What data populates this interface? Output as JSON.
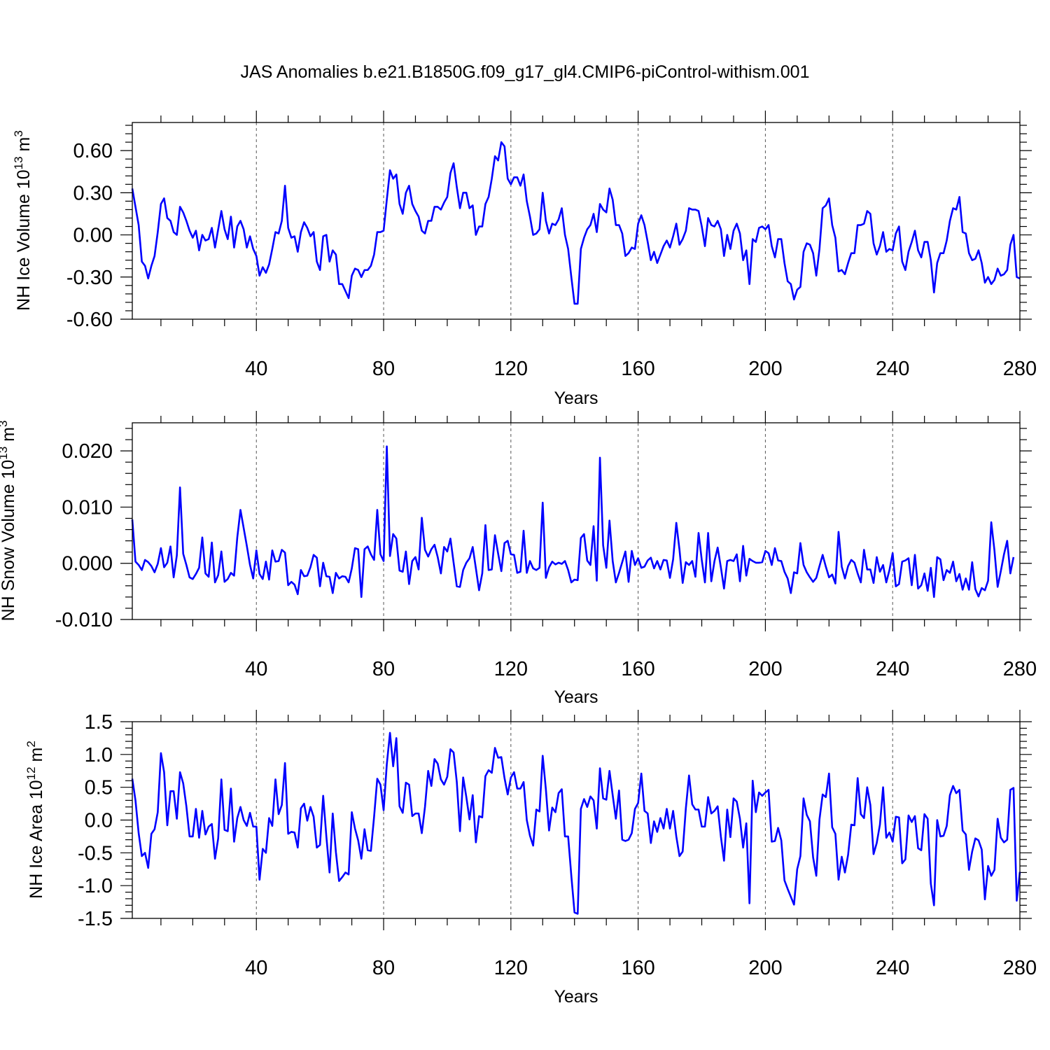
{
  "title": "JAS Anomalies b.e21.B1850G.f09_g17_gl4.CMIP6-piControl-withism.001",
  "line_color": "#0000ff",
  "chart_data": [
    {
      "type": "line",
      "name": "ice-volume",
      "ylabel": "NH Ice Volume 10",
      "ylabel_sup": "13",
      "ylabel_unit": " m",
      "ylabel_unit_sup": "3",
      "xlabel": "Years",
      "xlim": [
        1,
        280
      ],
      "ylim": [
        -0.6,
        0.8
      ],
      "xticks": [
        40,
        80,
        120,
        160,
        200,
        240,
        280
      ],
      "xtick_labels": [
        "40",
        "80",
        "120",
        "160",
        "200",
        "240",
        "280"
      ],
      "yticks": [
        -0.6,
        -0.3,
        0.0,
        0.3,
        0.6
      ],
      "ytick_labels": [
        "-0.60",
        "-0.30",
        "0.00",
        "0.30",
        "0.60"
      ],
      "grid_x": "dashed-vertical",
      "x_start": 1,
      "values": [
        0.33,
        0.2,
        0.07,
        -0.19,
        -0.22,
        -0.31,
        -0.22,
        -0.15,
        0.02,
        0.22,
        0.26,
        0.12,
        0.1,
        0.02,
        0.0,
        0.2,
        0.16,
        0.1,
        0.03,
        -0.02,
        0.03,
        -0.11,
        0.0,
        -0.04,
        -0.03,
        0.05,
        -0.09,
        0.04,
        0.17,
        0.04,
        -0.03,
        0.13,
        -0.09,
        0.06,
        0.1,
        0.04,
        -0.09,
        -0.01,
        -0.1,
        -0.15,
        -0.29,
        -0.23,
        -0.27,
        -0.21,
        -0.1,
        0.02,
        0.01,
        0.1,
        0.35,
        0.05,
        -0.02,
        -0.01,
        -0.12,
        0.02,
        0.09,
        0.05,
        -0.01,
        0.02,
        -0.19,
        -0.25,
        -0.01,
        0.0,
        -0.19,
        -0.11,
        -0.14,
        -0.35,
        -0.35,
        -0.4,
        -0.45,
        -0.29,
        -0.24,
        -0.25,
        -0.3,
        -0.25,
        -0.25,
        -0.22,
        -0.14,
        0.02,
        0.02,
        0.03,
        0.25,
        0.46,
        0.4,
        0.43,
        0.22,
        0.15,
        0.3,
        0.35,
        0.22,
        0.17,
        0.13,
        0.03,
        0.01,
        0.1,
        0.1,
        0.2,
        0.2,
        0.18,
        0.23,
        0.27,
        0.44,
        0.51,
        0.34,
        0.19,
        0.3,
        0.3,
        0.19,
        0.21,
        0.0,
        0.06,
        0.06,
        0.22,
        0.27,
        0.4,
        0.56,
        0.53,
        0.66,
        0.63,
        0.4,
        0.36,
        0.41,
        0.41,
        0.35,
        0.43,
        0.24,
        0.13,
        0.0,
        0.01,
        0.04,
        0.3,
        0.1,
        0.01,
        0.08,
        0.07,
        0.11,
        0.19,
        0.0,
        -0.1,
        -0.3,
        -0.49,
        -0.49,
        -0.1,
        -0.02,
        0.04,
        0.07,
        0.15,
        0.02,
        0.22,
        0.18,
        0.16,
        0.33,
        0.25,
        0.07,
        0.07,
        0.01,
        -0.15,
        -0.13,
        -0.09,
        -0.1,
        0.08,
        0.14,
        0.07,
        -0.05,
        -0.18,
        -0.12,
        -0.2,
        -0.14,
        -0.08,
        -0.04,
        -0.09,
        -0.01,
        0.08,
        -0.07,
        -0.03,
        0.03,
        0.19,
        0.18,
        0.18,
        0.17,
        0.06,
        -0.08,
        0.12,
        0.07,
        0.06,
        0.1,
        0.04,
        -0.15,
        0.0,
        -0.1,
        0.03,
        0.08,
        0.01,
        -0.18,
        -0.11,
        -0.35,
        -0.03,
        -0.05,
        0.05,
        0.06,
        0.04,
        0.07,
        -0.08,
        -0.16,
        -0.03,
        -0.03,
        -0.2,
        -0.33,
        -0.35,
        -0.46,
        -0.39,
        -0.37,
        -0.12,
        -0.06,
        -0.07,
        -0.13,
        -0.29,
        -0.1,
        0.19,
        0.21,
        0.26,
        0.07,
        -0.02,
        -0.26,
        -0.25,
        -0.28,
        -0.2,
        -0.13,
        -0.13,
        0.07,
        0.07,
        0.08,
        0.17,
        0.15,
        -0.06,
        -0.14,
        -0.08,
        0.02,
        -0.12,
        -0.1,
        -0.11,
        0.01,
        0.06,
        -0.19,
        -0.25,
        -0.12,
        -0.05,
        0.03,
        -0.11,
        -0.16,
        -0.05,
        -0.05,
        -0.18,
        -0.41,
        -0.2,
        -0.13,
        -0.13,
        -0.04,
        0.1,
        0.19,
        0.18,
        0.27,
        0.02,
        0.01,
        -0.13,
        -0.18,
        -0.17,
        -0.11,
        -0.2,
        -0.34,
        -0.3,
        -0.35,
        -0.32,
        -0.24,
        -0.29,
        -0.28,
        -0.25,
        -0.07,
        0.0,
        -0.3,
        -0.31
      ]
    },
    {
      "type": "line",
      "name": "snow-volume",
      "ylabel": "NH Snow Volume 10",
      "ylabel_sup": "13",
      "ylabel_unit": " m",
      "ylabel_unit_sup": "3",
      "xlabel": "Years",
      "xlim": [
        1,
        280
      ],
      "ylim": [
        -0.01,
        0.025
      ],
      "xticks": [
        40,
        80,
        120,
        160,
        200,
        240,
        280
      ],
      "xtick_labels": [
        "40",
        "80",
        "120",
        "160",
        "200",
        "240",
        "280"
      ],
      "yticks": [
        -0.01,
        0.0,
        0.01,
        0.02
      ],
      "ytick_labels": [
        "-0.010",
        "0.000",
        "0.010",
        "0.020"
      ],
      "grid_x": "dashed-vertical",
      "x_start": 1,
      "values": [
        0.0078,
        0.0003,
        -0.0003,
        -0.0012,
        0.0006,
        0.0002,
        -0.0005,
        -0.0016,
        -0.0001,
        0.0027,
        -0.0007,
        0.0001,
        0.003,
        -0.0025,
        0.0014,
        0.0135,
        0.0017,
        -0.0003,
        -0.0025,
        -0.0028,
        -0.0019,
        -0.0008,
        0.0046,
        -0.0018,
        -0.0024,
        0.0037,
        -0.0034,
        -0.0021,
        0.0021,
        -0.0033,
        -0.0028,
        -0.0017,
        -0.0022,
        0.0046,
        0.0095,
        0.0063,
        0.0031,
        -0.0003,
        -0.0027,
        0.0023,
        -0.0019,
        -0.0028,
        0.0003,
        -0.0029,
        0.0023,
        0.0003,
        0.0004,
        0.0024,
        0.0019,
        -0.0039,
        -0.0033,
        -0.0038,
        -0.0055,
        -0.0012,
        -0.0023,
        -0.0022,
        -0.0007,
        0.0015,
        0.001,
        -0.0041,
        0.0001,
        -0.0023,
        -0.0024,
        -0.0053,
        -0.0017,
        -0.0027,
        -0.0023,
        -0.0024,
        -0.0034,
        -0.0009,
        0.0027,
        0.0025,
        -0.006,
        0.0025,
        0.003,
        0.0016,
        0.0006,
        0.0095,
        0.0016,
        0.0004,
        0.0208,
        0.0013,
        0.0052,
        0.0044,
        -0.0013,
        -0.0015,
        0.0021,
        -0.0037,
        0.0004,
        0.0011,
        -0.0011,
        0.0081,
        0.0024,
        0.0012,
        0.0025,
        0.0033,
        0.0011,
        -0.0018,
        0.0029,
        0.0021,
        0.0044,
        0.0001,
        -0.0041,
        -0.0042,
        -0.0012,
        0.0001,
        0.0009,
        0.0029,
        -0.0009,
        -0.0048,
        -0.0018,
        0.0068,
        -0.0012,
        -0.0011,
        0.005,
        0.0017,
        -0.0014,
        0.0036,
        0.004,
        0.0016,
        0.0015,
        -0.0017,
        -0.0015,
        0.0058,
        -0.0017,
        0.0004,
        -0.0009,
        -0.0012,
        -0.0008,
        0.0108,
        -0.0026,
        -0.0007,
        0.0003,
        -0.0002,
        0.0001,
        -0.0001,
        0.0004,
        -0.0012,
        -0.0034,
        -0.0029,
        -0.003,
        0.0045,
        0.0052,
        0.0005,
        -0.0003,
        0.0066,
        -0.0031,
        0.0188,
        0.0032,
        -0.0008,
        0.0076,
        0.0004,
        -0.0034,
        -0.0017,
        0.0002,
        0.0021,
        -0.0033,
        0.0022,
        -0.0003,
        0.0009,
        -0.0008,
        -0.0006,
        0.0005,
        0.001,
        -0.0009,
        0.0004,
        -0.0011,
        0.0006,
        0.0005,
        -0.0026,
        0.0007,
        0.0072,
        0.0024,
        -0.0035,
        0.0002,
        -0.0003,
        0.0004,
        -0.0024,
        0.0054,
        0.0006,
        -0.0034,
        0.0054,
        -0.0032,
        0.0004,
        0.0028,
        -0.0007,
        -0.0045,
        0.0004,
        0.0006,
        0.0004,
        0.0016,
        -0.0032,
        0.0031,
        -0.0022,
        0.0008,
        0.0004,
        0.0001,
        0.0001,
        0.0002,
        0.0022,
        0.0018,
        -0.0003,
        0.0027,
        0.0005,
        0.0004,
        -0.0015,
        -0.0027,
        -0.0053,
        -0.0016,
        -0.0018,
        0.0036,
        -0.0003,
        -0.0016,
        -0.0025,
        -0.0033,
        -0.0026,
        -0.0005,
        0.0015,
        -0.0006,
        -0.0025,
        -0.002,
        -0.0036,
        0.0056,
        -0.0006,
        -0.0027,
        -0.0005,
        0.0006,
        0.0001,
        -0.0018,
        -0.0034,
        0.0024,
        -0.0011,
        -0.0011,
        -0.0035,
        0.0011,
        -0.0015,
        -0.0003,
        -0.0034,
        -0.0012,
        0.0018,
        -0.0041,
        -0.0037,
        0.0003,
        0.0005,
        0.0009,
        -0.0039,
        0.0015,
        -0.0045,
        -0.0039,
        -0.0018,
        -0.0049,
        -0.0008,
        -0.006,
        0.0011,
        0.0007,
        -0.003,
        -0.0012,
        -0.0017,
        0.0003,
        -0.0032,
        -0.0019,
        -0.0047,
        -0.0027,
        -0.0047,
        0.0002,
        -0.0046,
        -0.0059,
        -0.0044,
        -0.0048,
        -0.0031,
        0.0073,
        0.0023,
        -0.0042,
        -0.0014,
        0.0016,
        0.004,
        -0.0018,
        0.0011
      ]
    },
    {
      "type": "line",
      "name": "ice-area",
      "ylabel": "NH Ice Area 10",
      "ylabel_sup": "12",
      "ylabel_unit": " m",
      "ylabel_unit_sup": "2",
      "xlabel": "Years",
      "xlim": [
        1,
        280
      ],
      "ylim": [
        -1.5,
        1.5
      ],
      "xticks": [
        40,
        80,
        120,
        160,
        200,
        240,
        280
      ],
      "xtick_labels": [
        "40",
        "80",
        "120",
        "160",
        "200",
        "240",
        "280"
      ],
      "yticks": [
        -1.5,
        -1.0,
        -0.5,
        0.0,
        0.5,
        1.0,
        1.5
      ],
      "ytick_labels": [
        "-1.5",
        "-1.0",
        "-0.5",
        "0.0",
        "0.5",
        "1.0",
        "1.5"
      ],
      "grid_x": "dashed-vertical",
      "x_start": 1,
      "values": [
        0.63,
        0.3,
        -0.2,
        -0.55,
        -0.5,
        -0.73,
        -0.21,
        -0.14,
        0.12,
        1.02,
        0.73,
        -0.08,
        0.44,
        0.44,
        0.02,
        0.73,
        0.56,
        0.21,
        -0.25,
        -0.25,
        0.17,
        -0.27,
        0.14,
        -0.22,
        -0.1,
        -0.06,
        -0.59,
        -0.28,
        0.62,
        -0.15,
        -0.17,
        0.48,
        -0.33,
        0.03,
        0.2,
        0.0,
        -0.09,
        0.11,
        -0.1,
        -0.1,
        -0.91,
        -0.44,
        -0.5,
        0.03,
        -0.09,
        0.62,
        0.09,
        0.23,
        0.87,
        -0.21,
        -0.18,
        -0.19,
        -0.42,
        0.18,
        0.25,
        -0.01,
        0.2,
        0.05,
        -0.42,
        -0.38,
        0.37,
        -0.25,
        -0.8,
        0.1,
        -0.49,
        -0.93,
        -0.87,
        -0.8,
        -0.83,
        0.12,
        -0.13,
        -0.31,
        -0.59,
        -0.14,
        -0.46,
        -0.47,
        0.05,
        0.63,
        0.54,
        0.15,
        0.85,
        1.33,
        0.82,
        1.25,
        0.21,
        0.11,
        0.57,
        0.54,
        0.06,
        0.1,
        0.1,
        -0.2,
        0.2,
        0.75,
        0.52,
        0.93,
        0.86,
        0.62,
        0.54,
        0.66,
        1.08,
        1.03,
        0.58,
        -0.17,
        0.65,
        0.35,
        0.01,
        0.38,
        -0.34,
        0.06,
        0.04,
        0.67,
        0.76,
        0.72,
        1.1,
        0.95,
        0.96,
        0.64,
        0.39,
        0.65,
        0.73,
        0.48,
        0.48,
        0.58,
        0.0,
        -0.24,
        -0.39,
        0.16,
        0.13,
        0.98,
        0.47,
        -0.16,
        0.19,
        0.12,
        0.41,
        0.47,
        -0.25,
        -0.25,
        -0.85,
        -1.41,
        -1.43,
        0.17,
        0.32,
        0.2,
        0.36,
        0.3,
        -0.13,
        0.79,
        0.33,
        0.31,
        0.75,
        0.38,
        0.02,
        0.45,
        -0.3,
        -0.32,
        -0.3,
        -0.2,
        0.17,
        0.26,
        0.71,
        0.14,
        0.1,
        -0.35,
        -0.02,
        -0.18,
        0.03,
        -0.13,
        0.17,
        -0.13,
        0.14,
        -0.25,
        -0.55,
        -0.48,
        0.18,
        0.68,
        0.24,
        0.16,
        0.16,
        -0.1,
        -0.1,
        0.35,
        0.1,
        0.14,
        0.21,
        -0.25,
        -0.62,
        0.16,
        -0.26,
        0.33,
        0.28,
        0.02,
        -0.42,
        -0.05,
        -1.27,
        0.6,
        0.12,
        0.42,
        0.37,
        0.42,
        0.46,
        -0.33,
        -0.32,
        -0.12,
        -0.31,
        -0.92,
        -1.05,
        -1.17,
        -1.29,
        -0.75,
        -0.55,
        0.33,
        0.08,
        -0.02,
        -0.57,
        -0.85,
        0.01,
        0.39,
        0.35,
        0.71,
        -0.11,
        -0.21,
        -0.91,
        -0.56,
        -0.8,
        -0.53,
        -0.07,
        -0.08,
        0.64,
        0.09,
        0.03,
        0.5,
        0.23,
        -0.52,
        -0.35,
        -0.07,
        0.5,
        -0.27,
        -0.19,
        -0.33,
        0.05,
        0.04,
        -0.66,
        -0.6,
        0.07,
        -0.03,
        0.06,
        -0.43,
        -0.46,
        0.09,
        0.02,
        -0.97,
        -1.3,
        0.0,
        -0.25,
        -0.24,
        -0.09,
        0.38,
        0.52,
        0.41,
        0.46,
        -0.16,
        -0.22,
        -0.76,
        -0.48,
        -0.28,
        -0.31,
        -0.45,
        -1.21,
        -0.7,
        -0.85,
        -0.76,
        0.02,
        -0.27,
        -0.34,
        -0.3,
        0.46,
        0.49,
        -1.23,
        -0.79
      ]
    }
  ]
}
